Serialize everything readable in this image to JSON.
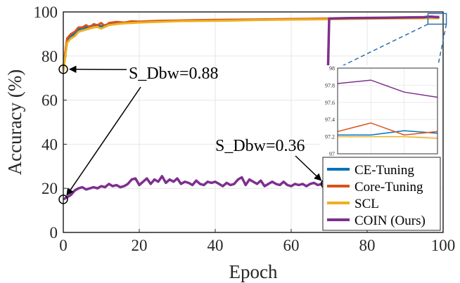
{
  "chart_data": {
    "type": "line",
    "xlabel": "Epoch",
    "ylabel": "Accuracy (%)",
    "xlim": [
      0,
      100
    ],
    "ylim": [
      0,
      100
    ],
    "xticks": [
      "0",
      "20",
      "40",
      "60",
      "80",
      "100"
    ],
    "yticks": [
      "0",
      "20",
      "40",
      "60",
      "80",
      "100"
    ],
    "grid": true,
    "legend_position": "bottom-right",
    "series": [
      {
        "name": "CE-Tuning",
        "color": "#0072BD",
        "points": [
          [
            0,
            74
          ],
          [
            1,
            87
          ],
          [
            2,
            89
          ],
          [
            3,
            90
          ],
          [
            4,
            92
          ],
          [
            5,
            92.5
          ],
          [
            6,
            93
          ],
          [
            7,
            93.5
          ],
          [
            8,
            94
          ],
          [
            9,
            94
          ],
          [
            10,
            93.5
          ],
          [
            12,
            94.5
          ],
          [
            14,
            95
          ],
          [
            16,
            95
          ],
          [
            18,
            95.5
          ],
          [
            20,
            95.5
          ],
          [
            25,
            95.7
          ],
          [
            30,
            96
          ],
          [
            35,
            96
          ],
          [
            40,
            96.2
          ],
          [
            45,
            96.3
          ],
          [
            50,
            96.5
          ],
          [
            55,
            96.6
          ],
          [
            60,
            96.7
          ],
          [
            65,
            96.8
          ],
          [
            70,
            96.9
          ],
          [
            75,
            97
          ],
          [
            80,
            97.1
          ],
          [
            85,
            97.1
          ],
          [
            90,
            97.2
          ],
          [
            95,
            97.2
          ],
          [
            96,
            97.22
          ],
          [
            97,
            97.22
          ],
          [
            98,
            97.27
          ],
          [
            99,
            97.24
          ]
        ]
      },
      {
        "name": "Core-Tuning",
        "color": "#D95319",
        "points": [
          [
            0,
            75
          ],
          [
            1,
            88
          ],
          [
            2,
            90
          ],
          [
            3,
            91
          ],
          [
            4,
            93
          ],
          [
            5,
            93
          ],
          [
            6,
            94
          ],
          [
            7,
            93
          ],
          [
            8,
            94.5
          ],
          [
            9,
            94
          ],
          [
            10,
            95
          ],
          [
            11,
            93.5
          ],
          [
            12,
            95
          ],
          [
            14,
            95.5
          ],
          [
            16,
            95.2
          ],
          [
            18,
            95.8
          ],
          [
            20,
            95.6
          ],
          [
            25,
            96
          ],
          [
            30,
            96.1
          ],
          [
            35,
            96.3
          ],
          [
            40,
            96.4
          ],
          [
            45,
            96.5
          ],
          [
            50,
            96.6
          ],
          [
            55,
            96.7
          ],
          [
            60,
            96.8
          ],
          [
            65,
            96.9
          ],
          [
            70,
            97
          ],
          [
            75,
            97.1
          ],
          [
            80,
            97.2
          ],
          [
            85,
            97.2
          ],
          [
            90,
            97.25
          ],
          [
            95,
            97.3
          ],
          [
            96,
            97.26
          ],
          [
            97,
            97.36
          ],
          [
            98,
            97.22
          ],
          [
            99,
            97.26
          ]
        ]
      },
      {
        "name": "SCL",
        "color": "#EDB120",
        "points": [
          [
            0,
            73
          ],
          [
            1,
            86
          ],
          [
            2,
            88
          ],
          [
            3,
            89
          ],
          [
            4,
            91
          ],
          [
            5,
            91.5
          ],
          [
            6,
            92
          ],
          [
            7,
            92.5
          ],
          [
            8,
            93
          ],
          [
            9,
            93.2
          ],
          [
            10,
            92.5
          ],
          [
            12,
            94
          ],
          [
            14,
            94.5
          ],
          [
            16,
            94.8
          ],
          [
            18,
            95
          ],
          [
            20,
            95.2
          ],
          [
            25,
            95.5
          ],
          [
            30,
            95.8
          ],
          [
            35,
            95.9
          ],
          [
            40,
            96
          ],
          [
            45,
            96.1
          ],
          [
            50,
            96.3
          ],
          [
            55,
            96.4
          ],
          [
            60,
            96.5
          ],
          [
            65,
            96.6
          ],
          [
            70,
            96.7
          ],
          [
            75,
            96.8
          ],
          [
            80,
            96.9
          ],
          [
            85,
            97
          ],
          [
            90,
            97.05
          ],
          [
            95,
            97.1
          ],
          [
            96,
            97.2
          ],
          [
            97,
            97.2
          ],
          [
            98,
            97.2
          ],
          [
            99,
            97.18
          ]
        ]
      },
      {
        "name": "COIN (Ours)",
        "color": "#7E2F8E",
        "points": [
          [
            0,
            15
          ],
          [
            1,
            16
          ],
          [
            2,
            17
          ],
          [
            3,
            19
          ],
          [
            4,
            20
          ],
          [
            5,
            20.5
          ],
          [
            6,
            19.5
          ],
          [
            7,
            20
          ],
          [
            8,
            20.5
          ],
          [
            9,
            20
          ],
          [
            10,
            21
          ],
          [
            11,
            20.5
          ],
          [
            12,
            22
          ],
          [
            13,
            21
          ],
          [
            14,
            21.5
          ],
          [
            15,
            20.5
          ],
          [
            16,
            21
          ],
          [
            17,
            22
          ],
          [
            18,
            24
          ],
          [
            19,
            24.5
          ],
          [
            20,
            21.5
          ],
          [
            21,
            23
          ],
          [
            22,
            24.5
          ],
          [
            23,
            22
          ],
          [
            24,
            24
          ],
          [
            25,
            23
          ],
          [
            26,
            25.5
          ],
          [
            27,
            22.5
          ],
          [
            28,
            24
          ],
          [
            29,
            23
          ],
          [
            30,
            24.5
          ],
          [
            31,
            22
          ],
          [
            32,
            23
          ],
          [
            33,
            22.5
          ],
          [
            34,
            21.5
          ],
          [
            35,
            23.5
          ],
          [
            36,
            22
          ],
          [
            37,
            21.5
          ],
          [
            38,
            23
          ],
          [
            39,
            22.5
          ],
          [
            40,
            23
          ],
          [
            41,
            22
          ],
          [
            42,
            21
          ],
          [
            43,
            22.5
          ],
          [
            44,
            21.5
          ],
          [
            45,
            22
          ],
          [
            46,
            24
          ],
          [
            47,
            25
          ],
          [
            48,
            21.5
          ],
          [
            49,
            24
          ],
          [
            50,
            23
          ],
          [
            51,
            22
          ],
          [
            52,
            23.5
          ],
          [
            53,
            21
          ],
          [
            54,
            22
          ],
          [
            55,
            23
          ],
          [
            56,
            22
          ],
          [
            57,
            21.5
          ],
          [
            58,
            23
          ],
          [
            59,
            21.5
          ],
          [
            60,
            21
          ],
          [
            61,
            22
          ],
          [
            62,
            21.5
          ],
          [
            63,
            22
          ],
          [
            64,
            21
          ],
          [
            65,
            22
          ],
          [
            66,
            22.5
          ],
          [
            67,
            21.5
          ],
          [
            68,
            22
          ],
          [
            69,
            22
          ],
          [
            70,
            97
          ],
          [
            75,
            97.2
          ],
          [
            80,
            97.3
          ],
          [
            85,
            97.4
          ],
          [
            90,
            97.5
          ],
          [
            95,
            97.6
          ],
          [
            96,
            97.82
          ],
          [
            97,
            97.86
          ],
          [
            98,
            97.72
          ],
          [
            99,
            97.66
          ]
        ]
      }
    ],
    "annotations": [
      {
        "text": "S_Dbw=0.88",
        "points": [
          [
            0,
            74
          ],
          [
            0,
            15
          ]
        ]
      },
      {
        "text": "S_Dbw=0.36",
        "points": [
          [
            69,
            22
          ]
        ]
      }
    ],
    "inset": {
      "xlim": [
        96,
        99
      ],
      "ylim": [
        97,
        98
      ],
      "xticks": [
        "96",
        "97",
        "98",
        "99"
      ],
      "yticks": [
        "97",
        "97.2",
        "97.4",
        "97.6",
        "97.8",
        "98"
      ]
    }
  }
}
